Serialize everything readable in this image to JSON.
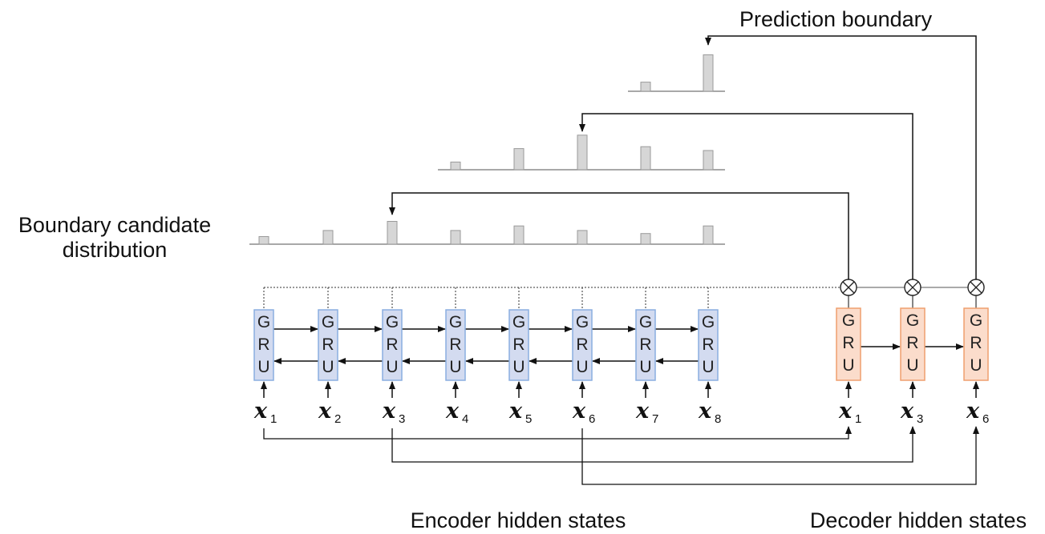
{
  "labels": {
    "prediction_boundary": "Prediction boundary",
    "boundary_candidate_line1": "Boundary candidate",
    "boundary_candidate_line2": "distribution",
    "encoder_hidden_states": "Encoder hidden states",
    "decoder_hidden_states": "Decoder hidden states"
  },
  "gru_letters": [
    "G",
    "R",
    "U"
  ],
  "encoder": {
    "cells": [
      {
        "x_var": "x",
        "sub": "1"
      },
      {
        "x_var": "x",
        "sub": "2"
      },
      {
        "x_var": "x",
        "sub": "3"
      },
      {
        "x_var": "x",
        "sub": "4"
      },
      {
        "x_var": "x",
        "sub": "5"
      },
      {
        "x_var": "x",
        "sub": "6"
      },
      {
        "x_var": "x",
        "sub": "7"
      },
      {
        "x_var": "x",
        "sub": "8"
      }
    ],
    "fill": "#d3dbf0",
    "stroke": "#8aaee0"
  },
  "decoder": {
    "cells": [
      {
        "x_var": "x",
        "sub": "1"
      },
      {
        "x_var": "x",
        "sub": "3"
      },
      {
        "x_var": "x",
        "sub": "6"
      }
    ],
    "fill": "#fbdccb",
    "stroke": "#ef9f6e"
  },
  "distributions": [
    {
      "name": "step-1",
      "values": [
        0.25,
        0.45,
        0.75,
        0.45,
        0.6,
        0.45,
        0.35,
        0.6
      ],
      "selected": 3
    },
    {
      "name": "step-2",
      "values": [
        0.2,
        0.55,
        0.9,
        0.6,
        0.5
      ],
      "selected": 3
    },
    {
      "name": "step-3",
      "values": [
        0.2,
        0.8
      ],
      "selected": 2
    }
  ],
  "bar_color": "#d6d6d6"
}
